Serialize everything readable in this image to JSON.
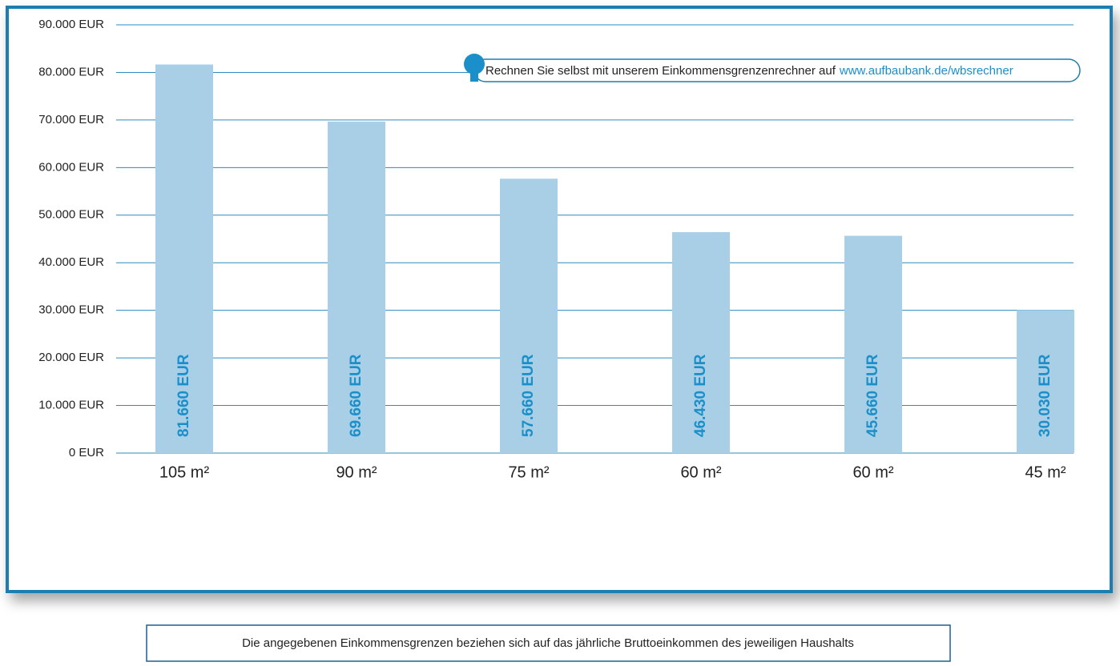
{
  "chart_data": {
    "type": "bar",
    "categories": [
      "105 m²",
      "90 m²",
      "75 m²",
      "60 m²",
      "60 m²",
      "45 m²"
    ],
    "values": [
      81660,
      69660,
      57660,
      46430,
      45660,
      30030
    ],
    "value_labels": [
      "81.660 EUR",
      "69.660 EUR",
      "57.660 EUR",
      "46.430 EUR",
      "45.660 EUR",
      "30.030 EUR"
    ],
    "color": "#a8cfe6",
    "ylim": [
      0,
      90000
    ],
    "yticks": [
      {
        "value": 0,
        "label": "0 EUR"
      },
      {
        "value": 10000,
        "label": "10.000 EUR"
      },
      {
        "value": 20000,
        "label": "20.000 EUR"
      },
      {
        "value": 30000,
        "label": "30.000 EUR"
      },
      {
        "value": 40000,
        "label": "40.000 EUR"
      },
      {
        "value": 50000,
        "label": "50.000 EUR"
      },
      {
        "value": 60000,
        "label": "60.000 EUR"
      },
      {
        "value": 70000,
        "label": "70.000 EUR"
      },
      {
        "value": 80000,
        "label": "80.000 EUR"
      },
      {
        "value": 90000,
        "label": "90.000 EUR"
      }
    ],
    "grid": true,
    "annotation": {
      "text": "Rechnen Sie selbst mit unserem Einkommensgrenzenrechner auf",
      "link": "www.aufbaubank.de/wbsrechner"
    },
    "note": "Die angegebenen Einkommensgrenzen beziehen sich auf das jährliche Bruttoeinkommen des jeweiligen Haushalts"
  }
}
